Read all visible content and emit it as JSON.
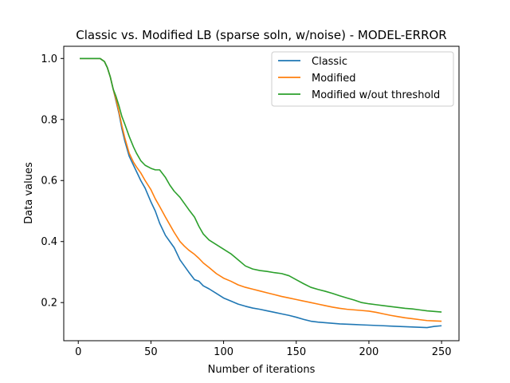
{
  "chart_data": {
    "type": "line",
    "title": "Classic vs. Modified LB (sparse soln, w/noise) - MODEL-ERROR",
    "xlabel": "Number of iterations",
    "ylabel": "Data values",
    "xlim": [
      -10,
      262
    ],
    "ylim": [
      0.075,
      1.04
    ],
    "xticks": [
      0,
      50,
      100,
      150,
      200,
      250
    ],
    "yticks": [
      0.2,
      0.4,
      0.6,
      0.8,
      1.0
    ],
    "ytick_labels": [
      "0.2",
      "0.4",
      "0.6",
      "0.8",
      "1.0"
    ],
    "grid": false,
    "legend_position": "top-right",
    "x": [
      1,
      5,
      10,
      15,
      18,
      20,
      22,
      24,
      26,
      28,
      30,
      32,
      35,
      38,
      40,
      43,
      46,
      50,
      53,
      56,
      60,
      63,
      66,
      70,
      73,
      76,
      80,
      83,
      86,
      90,
      95,
      100,
      105,
      110,
      115,
      120,
      125,
      130,
      135,
      140,
      145,
      150,
      155,
      160,
      165,
      170,
      175,
      180,
      185,
      190,
      195,
      200,
      205,
      210,
      215,
      220,
      225,
      230,
      235,
      240,
      245,
      250
    ],
    "series": [
      {
        "name": "Classic",
        "color": "#1f77b4",
        "values": [
          1.0,
          1.0,
          1.0,
          1.0,
          0.99,
          0.97,
          0.94,
          0.9,
          0.86,
          0.82,
          0.77,
          0.73,
          0.68,
          0.65,
          0.63,
          0.6,
          0.575,
          0.53,
          0.5,
          0.46,
          0.42,
          0.4,
          0.38,
          0.34,
          0.32,
          0.3,
          0.275,
          0.27,
          0.255,
          0.245,
          0.23,
          0.215,
          0.205,
          0.195,
          0.188,
          0.182,
          0.178,
          0.173,
          0.168,
          0.163,
          0.158,
          0.152,
          0.145,
          0.139,
          0.136,
          0.134,
          0.132,
          0.13,
          0.129,
          0.128,
          0.127,
          0.126,
          0.125,
          0.124,
          0.123,
          0.122,
          0.121,
          0.12,
          0.119,
          0.118,
          0.122,
          0.124
        ]
      },
      {
        "name": "Modified",
        "color": "#ff7f0e",
        "values": [
          1.0,
          1.0,
          1.0,
          1.0,
          0.99,
          0.97,
          0.94,
          0.9,
          0.865,
          0.825,
          0.78,
          0.74,
          0.69,
          0.66,
          0.645,
          0.625,
          0.6,
          0.57,
          0.54,
          0.515,
          0.48,
          0.455,
          0.43,
          0.4,
          0.385,
          0.372,
          0.358,
          0.345,
          0.33,
          0.315,
          0.295,
          0.28,
          0.27,
          0.258,
          0.25,
          0.244,
          0.238,
          0.232,
          0.226,
          0.22,
          0.215,
          0.21,
          0.205,
          0.2,
          0.195,
          0.19,
          0.185,
          0.181,
          0.178,
          0.176,
          0.174,
          0.172,
          0.168,
          0.163,
          0.158,
          0.154,
          0.15,
          0.147,
          0.144,
          0.141,
          0.14,
          0.139
        ]
      },
      {
        "name": "Modified w/out threshold",
        "color": "#2ca02c",
        "values": [
          1.0,
          1.0,
          1.0,
          1.0,
          0.99,
          0.97,
          0.94,
          0.9,
          0.875,
          0.845,
          0.81,
          0.785,
          0.745,
          0.71,
          0.69,
          0.665,
          0.65,
          0.64,
          0.635,
          0.635,
          0.61,
          0.585,
          0.565,
          0.545,
          0.525,
          0.505,
          0.48,
          0.45,
          0.425,
          0.405,
          0.39,
          0.375,
          0.36,
          0.34,
          0.32,
          0.31,
          0.305,
          0.302,
          0.298,
          0.295,
          0.288,
          0.275,
          0.262,
          0.25,
          0.243,
          0.237,
          0.23,
          0.222,
          0.215,
          0.208,
          0.2,
          0.196,
          0.193,
          0.19,
          0.187,
          0.184,
          0.181,
          0.179,
          0.176,
          0.173,
          0.171,
          0.169
        ]
      }
    ]
  }
}
